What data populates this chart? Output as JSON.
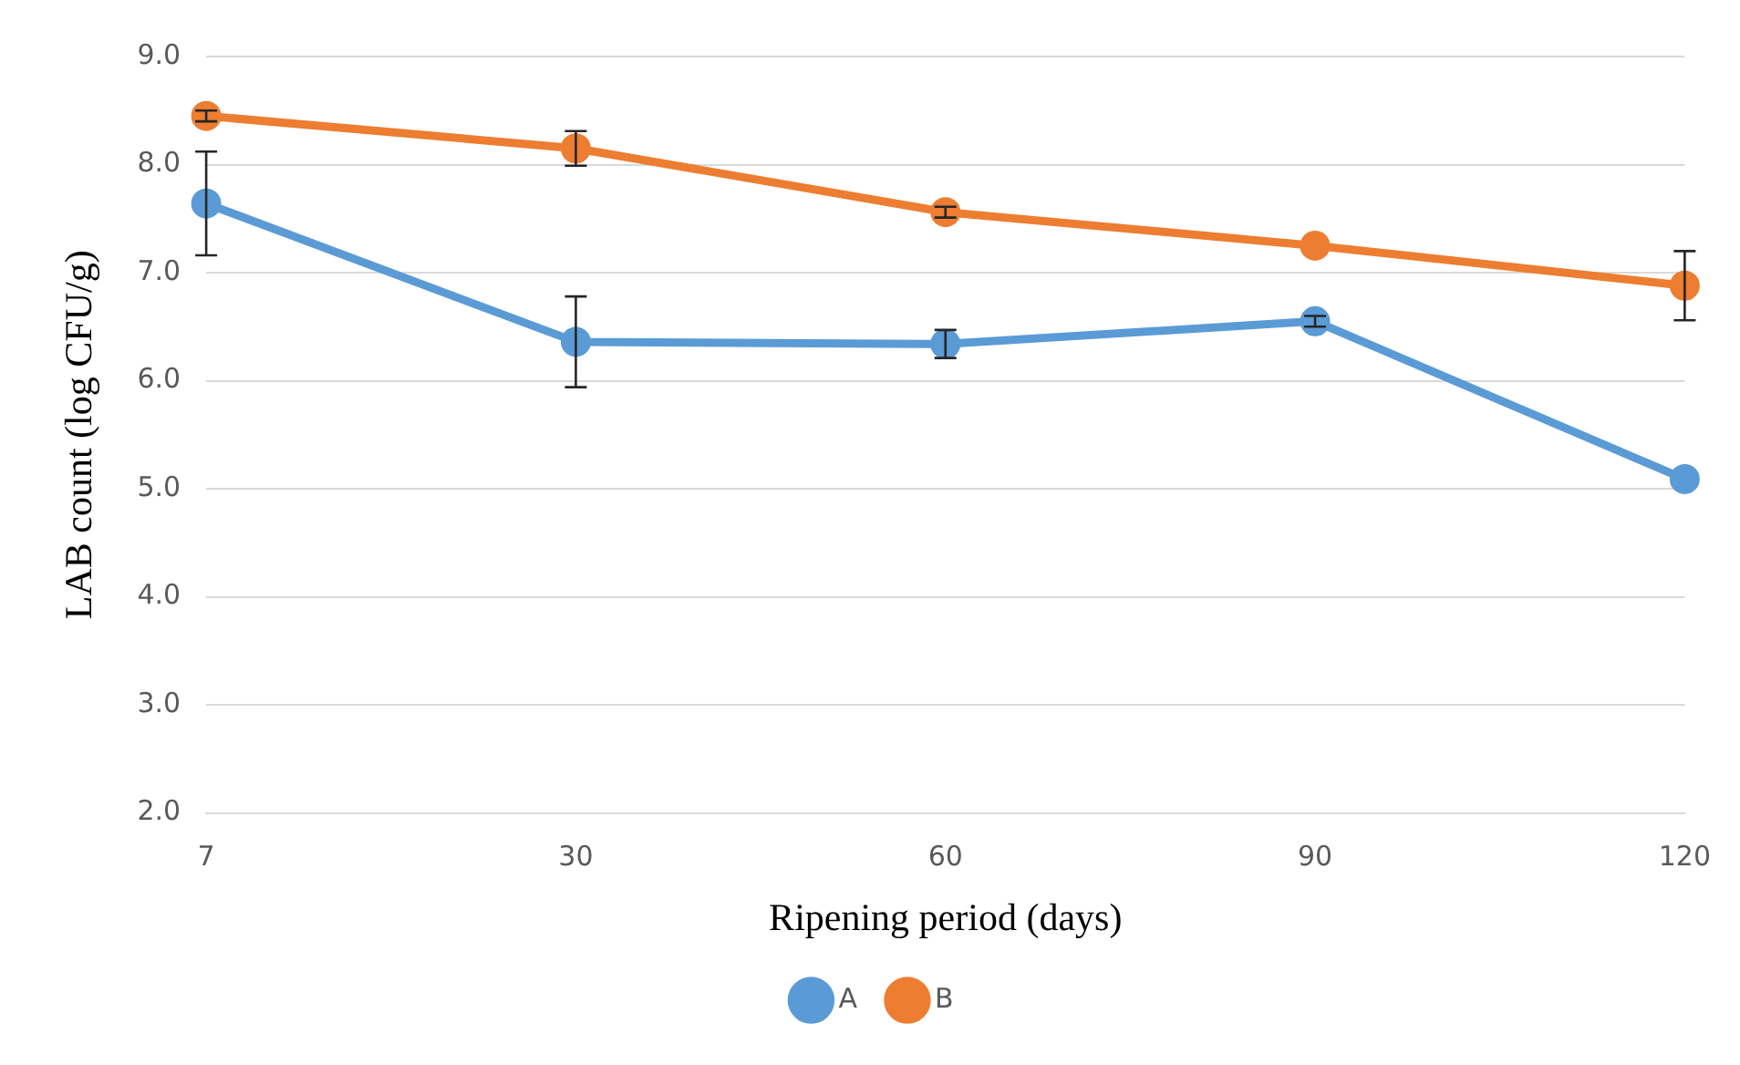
{
  "chart_data": {
    "type": "line",
    "xlabel": "Ripening period (days)",
    "ylabel": "LAB count (log CFU/g)",
    "categories": [
      "7",
      "30",
      "60",
      "90",
      "120"
    ],
    "series": [
      {
        "name": "A",
        "color": "#5b9bd5",
        "values": [
          7.64,
          6.36,
          6.34,
          6.55,
          5.09
        ],
        "errors": [
          0.48,
          0.42,
          0.13,
          0.05,
          null
        ]
      },
      {
        "name": "B",
        "color": "#ed7d31",
        "values": [
          8.45,
          8.15,
          7.56,
          7.25,
          6.88
        ],
        "errors": [
          0.05,
          0.16,
          0.05,
          null,
          0.32
        ]
      }
    ],
    "ylim": [
      2,
      9
    ],
    "yticks": [
      {
        "value": 2,
        "label": "2.0"
      },
      {
        "value": 3,
        "label": "3.0"
      },
      {
        "value": 4,
        "label": "4.0"
      },
      {
        "value": 5,
        "label": "5.0"
      },
      {
        "value": 6,
        "label": "6.0"
      },
      {
        "value": 7,
        "label": "7.0"
      },
      {
        "value": 8,
        "label": "8.0"
      },
      {
        "value": 9,
        "label": "9.0"
      }
    ],
    "grid": "y",
    "legend": "bottom",
    "marker": "circle",
    "line_style": "solid"
  }
}
